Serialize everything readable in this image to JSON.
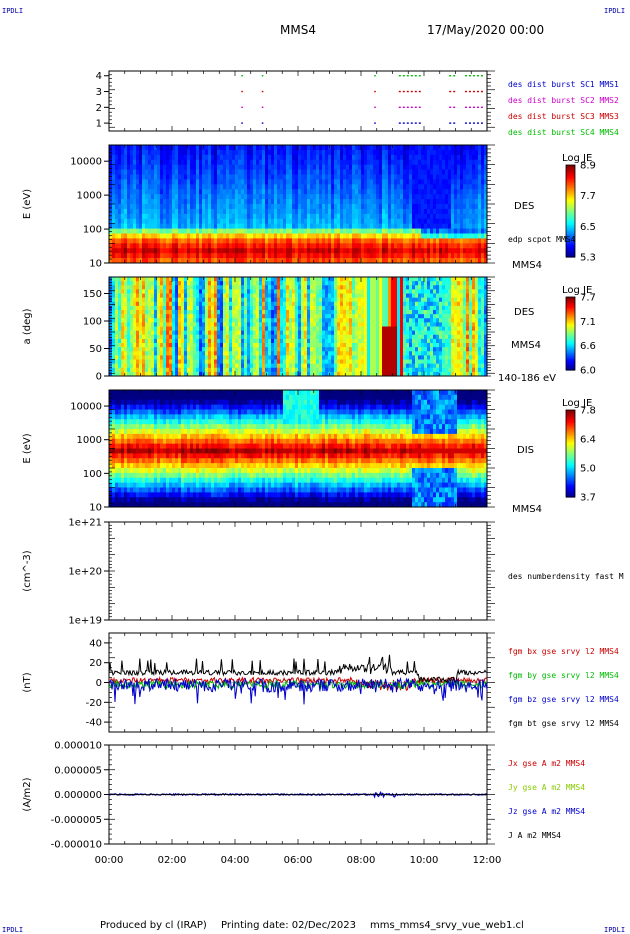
{
  "header": {
    "corner_label": "IPDLI",
    "mission": "MMS4",
    "date": "17/May/2020 00:00"
  },
  "footer": {
    "produced_by": "Produced by cl (IRAP)",
    "printing_date": "Printing date: 02/Dec/2023",
    "file": "mms_mms4_srvy_vue_web1.cl"
  },
  "time_axis": {
    "ticks": [
      "00:00",
      "02:00",
      "04:00",
      "06:00",
      "08:00",
      "10:00",
      "12:00"
    ],
    "range_hours": [
      0,
      12
    ]
  },
  "chart_data": [
    {
      "type": "scatter",
      "id": "burst",
      "ylim": [
        0.5,
        4.3
      ],
      "yticks": [
        "1",
        "2",
        "3",
        "4"
      ],
      "legend": [
        {
          "label": "des dist burst SC1 MMS1",
          "color": "#0000cc"
        },
        {
          "label": "des dist burst SC2 MMS2",
          "color": "#cc00cc"
        },
        {
          "label": "des dist burst SC3 MMS3",
          "color": "#cc0000"
        },
        {
          "label": "des dist burst SC4 MMS4",
          "color": "#00bb00"
        }
      ],
      "intervals_hours": [
        [
          4.2,
          4.25
        ],
        [
          4.85,
          4.9
        ],
        [
          8.42,
          8.47
        ],
        [
          9.2,
          9.9
        ],
        [
          10.8,
          11.0
        ],
        [
          11.3,
          11.9
        ]
      ]
    },
    {
      "type": "heatmap",
      "id": "des_energy",
      "ylabel": "E (eV)",
      "ylog": true,
      "ylim": [
        10,
        30000
      ],
      "yticks": [
        "10",
        "100",
        "1000",
        "10000"
      ],
      "right_labels": [
        "DES",
        "edp scpot MMS4",
        "MMS4"
      ],
      "colorbar": {
        "title": "Log JE",
        "min": 5.3,
        "max": 8.9,
        "ticks": [
          "8.9",
          "7.7",
          "6.5",
          "5.3"
        ]
      }
    },
    {
      "type": "heatmap",
      "id": "des_pitch",
      "ylabel": "a (deg)",
      "ylim": [
        0,
        180
      ],
      "yticks": [
        "0",
        "50",
        "100",
        "150"
      ],
      "right_labels": [
        "DES",
        "MMS4",
        "140-186 eV"
      ],
      "colorbar": {
        "title": "Log JE",
        "min": 6.0,
        "max": 7.7,
        "ticks": [
          "7.7",
          "7.1",
          "6.6",
          "6.0"
        ]
      }
    },
    {
      "type": "heatmap",
      "id": "dis_energy",
      "ylabel": "E (eV)",
      "ylog": true,
      "ylim": [
        10,
        30000
      ],
      "yticks": [
        "10",
        "100",
        "1000",
        "10000"
      ],
      "right_labels": [
        "DIS",
        "MMS4"
      ],
      "colorbar": {
        "title": "Log JE",
        "min": 3.7,
        "max": 7.8,
        "ticks": [
          "7.8",
          "6.4",
          "5.0",
          "3.7"
        ]
      }
    },
    {
      "type": "line",
      "id": "density",
      "ylabel": "(cm^-3)",
      "ylog": true,
      "yticks": [
        "1e+19",
        "1e+20",
        "1e+21"
      ],
      "legend": [
        {
          "label": "des numberdensity fast M",
          "color": "#000000"
        }
      ]
    },
    {
      "type": "line",
      "id": "fgm",
      "ylabel": "(nT)",
      "ylim": [
        -50,
        50
      ],
      "yticks": [
        "-40",
        "-20",
        "0",
        "20",
        "40"
      ],
      "legend": [
        {
          "label": "fgm bx gse srvy l2 MMS4",
          "color": "#cc0000"
        },
        {
          "label": "fgm by gse srvy l2 MMS4",
          "color": "#00bb00"
        },
        {
          "label": "fgm bz gse srvy l2 MMS4",
          "color": "#0000cc"
        },
        {
          "label": "fgm bt gse srvy l2 MMS4",
          "color": "#000000"
        }
      ]
    },
    {
      "type": "line",
      "id": "current",
      "ylabel": "(A/m2)",
      "ylim": [
        -1e-05,
        1e-05
      ],
      "yticks": [
        "0.000010",
        "0.000005",
        "0.000000",
        "-0.000005",
        "-0.000010"
      ],
      "legend": [
        {
          "label": "Jx gse A m2 MMS4",
          "color": "#cc0000"
        },
        {
          "label": "Jy gse A m2 MMS4",
          "color": "#88cc00"
        },
        {
          "label": "Jz gse A m2 MMS4",
          "color": "#0000cc"
        },
        {
          "label": "J A m2 MMS4",
          "color": "#000000"
        }
      ]
    }
  ]
}
